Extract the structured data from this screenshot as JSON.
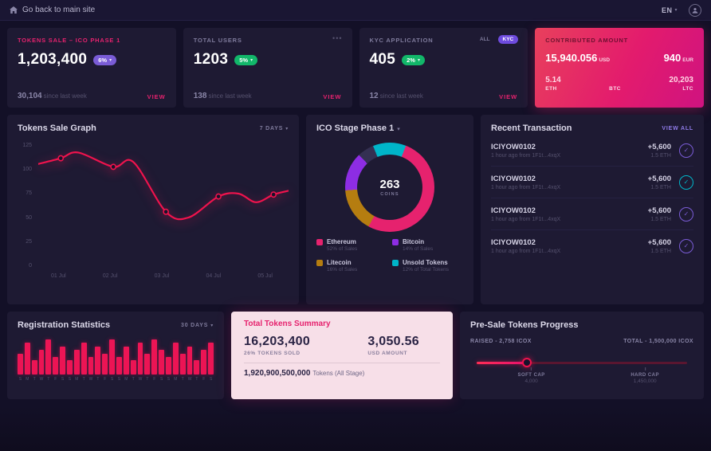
{
  "topbar": {
    "back_label": "Go back to main site",
    "lang": "EN"
  },
  "stat_cards": [
    {
      "title": "TOKENS SALE – ICO PHASE 1",
      "value": "1,203,400",
      "badge": "6%",
      "badge_color": "#7a5cd6",
      "sub_value": "30,104",
      "sub_label": "since last week",
      "action": "VIEW"
    },
    {
      "title": "TOTAL USERS",
      "value": "1203",
      "badge": "5%",
      "badge_color": "#12b76a",
      "sub_value": "138",
      "sub_label": "since last week",
      "action": "VIEW",
      "menu": "•••"
    },
    {
      "title": "KYC APPLICATION",
      "value": "405",
      "badge": "2%",
      "badge_color": "#12b76a",
      "sub_value": "12",
      "sub_label": "since last week",
      "action": "VIEW",
      "tabs": [
        "ALL",
        "KYC"
      ]
    }
  ],
  "contributed": {
    "title": "CONTRIBUTED AMOUNT",
    "primary_value": "15,940.056",
    "primary_unit": "USD",
    "secondary_value": "940",
    "secondary_unit": "EUR",
    "assets": [
      {
        "value": "5.14",
        "unit": "ETH"
      },
      {
        "value": "",
        "unit": "BTC"
      },
      {
        "value": "20,203",
        "unit": "LTC"
      }
    ]
  },
  "charts": {
    "tokens_sale": {
      "type": "line",
      "title": "Tokens Sale Graph",
      "range_label": "7 DAYS",
      "line_color": "#f0134d",
      "ymax": 125,
      "yticks": [
        "125",
        "100",
        "75",
        "50",
        "25",
        "0"
      ],
      "xlabels": [
        "01 Jul",
        "02 Jul",
        "03 Jul",
        "04 Jul",
        "05 Jul"
      ],
      "points": [
        [
          0,
          106
        ],
        [
          0.09,
          112
        ],
        [
          0.16,
          118
        ],
        [
          0.3,
          103
        ],
        [
          0.38,
          108
        ],
        [
          0.51,
          56
        ],
        [
          0.6,
          50
        ],
        [
          0.72,
          72
        ],
        [
          0.8,
          75
        ],
        [
          0.87,
          66
        ],
        [
          0.94,
          74
        ],
        [
          1,
          78
        ]
      ],
      "marker_indices": [
        1,
        3,
        5,
        7,
        10
      ]
    },
    "ico_stage": {
      "type": "pie",
      "title": "ICO Stage Phase 1",
      "center_value": "263",
      "center_label": "COINS",
      "legend": [
        {
          "name": "Ethereum",
          "detail": "52% of Sales",
          "color": "#e6226e"
        },
        {
          "name": "Bitcoin",
          "detail": "14% of Sales",
          "color": "#8d2de3"
        },
        {
          "name": "Litecoin",
          "detail": "16% of Sales",
          "color": "#b57d10"
        },
        {
          "name": "Unsold Tokens",
          "detail": "12% of Total Tokens",
          "color": "#00b5c9"
        }
      ],
      "donut": [
        {
          "color": "#00b5c9",
          "pct": 12
        },
        {
          "color": "#e6226e",
          "pct": 52
        },
        {
          "color": "#b57d10",
          "pct": 16
        },
        {
          "color": "#8d2de3",
          "pct": 14
        },
        {
          "color": "#343052",
          "pct": 6
        }
      ]
    },
    "registration": {
      "type": "bar",
      "title": "Registration Statistics",
      "range_label": "30 DAYS",
      "bar_color": "#ec1555",
      "labels": [
        "S",
        "M",
        "T",
        "W",
        "T",
        "F",
        "S",
        "S",
        "M",
        "T",
        "W",
        "T",
        "F",
        "S",
        "S",
        "M",
        "T",
        "W",
        "T",
        "F",
        "S",
        "S",
        "M",
        "T",
        "W",
        "T",
        "F",
        "S"
      ],
      "values": [
        6,
        9,
        4,
        7,
        10,
        5,
        8,
        4,
        7,
        9,
        5,
        8,
        6,
        10,
        5,
        8,
        4,
        9,
        6,
        10,
        7,
        5,
        9,
        6,
        8,
        4,
        7,
        9
      ]
    }
  },
  "transactions": {
    "title": "Recent Transaction",
    "view_all": "VIEW ALL",
    "rows": [
      {
        "id": "ICIYOW0102",
        "meta": "1 hour ago from 1F1t...4xqX",
        "amount": "+5,600",
        "amount_unit": "1.5 ETH",
        "icon_color": "#7a5cd6"
      },
      {
        "id": "ICIYOW0102",
        "meta": "1 hour ago from 1F1t...4xqX",
        "amount": "+5,600",
        "amount_unit": "1.5 ETH",
        "icon_color": "#00b5c9"
      },
      {
        "id": "ICIYOW0102",
        "meta": "1 hour ago from 1F1t...4xqX",
        "amount": "+5,600",
        "amount_unit": "1.5 ETH",
        "icon_color": "#7a5cd6"
      },
      {
        "id": "ICIYOW0102",
        "meta": "1 hour ago from 1F1t...4xqX",
        "amount": "+5,600",
        "amount_unit": "1.5 ETH",
        "icon_color": "#7a5cd6"
      }
    ]
  },
  "summary": {
    "title": "Total Tokens Summary",
    "tokens_value": "16,203,400",
    "tokens_label": "26% TOKENS SOLD",
    "usd_value": "3,050.56",
    "usd_label": "USD AMOUNT",
    "total_value": "1,920,900,500,000",
    "total_label": "Tokens (All Stage)"
  },
  "presale": {
    "title": "Pre-Sale Tokens Progress",
    "raised_label": "RAISED - 2,758 ICOX",
    "total_label": "TOTAL - 1,500,000 ICOX",
    "progress_pct": 24,
    "markers": [
      {
        "label": "SOFT CAP",
        "value": "4,000",
        "pos_pct": 26
      },
      {
        "label": "HARD CAP",
        "value": "1,450,000",
        "pos_pct": 80
      }
    ]
  }
}
